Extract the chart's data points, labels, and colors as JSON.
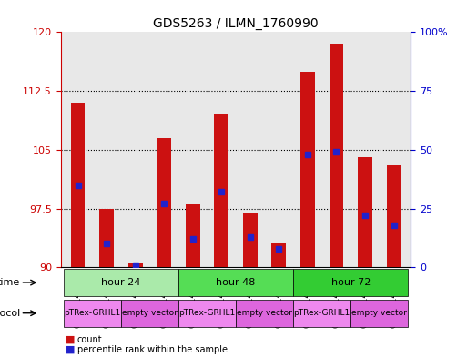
{
  "title": "GDS5263 / ILMN_1760990",
  "samples": [
    "GSM1149037",
    "GSM1149039",
    "GSM1149036",
    "GSM1149038",
    "GSM1149041",
    "GSM1149043",
    "GSM1149040",
    "GSM1149042",
    "GSM1149045",
    "GSM1149047",
    "GSM1149044",
    "GSM1149046"
  ],
  "red_values": [
    111.0,
    97.5,
    90.5,
    106.5,
    98.0,
    109.5,
    97.0,
    93.0,
    115.0,
    118.5,
    104.0,
    103.0
  ],
  "blue_percentile": [
    35,
    10,
    1,
    27,
    12,
    32,
    13,
    8,
    48,
    49,
    22,
    18
  ],
  "ylim_left": [
    90,
    120
  ],
  "ylim_right": [
    0,
    100
  ],
  "yticks_left": [
    90,
    97.5,
    105,
    112.5,
    120
  ],
  "yticks_right": [
    0,
    25,
    50,
    75,
    100
  ],
  "ytick_labels_right": [
    "0",
    "25",
    "50",
    "75",
    "100%"
  ],
  "grid_dotted_values": [
    97.5,
    105,
    112.5
  ],
  "bar_color": "#cc1111",
  "blue_color": "#2222cc",
  "bar_bottom": 90,
  "time_groups": [
    {
      "label": "hour 24",
      "start": 0,
      "end": 4,
      "color": "#aaeaaa"
    },
    {
      "label": "hour 48",
      "start": 4,
      "end": 8,
      "color": "#55dd55"
    },
    {
      "label": "hour 72",
      "start": 8,
      "end": 12,
      "color": "#33cc33"
    }
  ],
  "protocol_groups": [
    {
      "label": "pTRex-GRHL1",
      "start": 0,
      "end": 2,
      "color": "#ee88ee"
    },
    {
      "label": "empty vector",
      "start": 2,
      "end": 4,
      "color": "#dd66dd"
    },
    {
      "label": "pTRex-GRHL1",
      "start": 4,
      "end": 6,
      "color": "#ee88ee"
    },
    {
      "label": "empty vector",
      "start": 6,
      "end": 8,
      "color": "#dd66dd"
    },
    {
      "label": "pTRex-GRHL1",
      "start": 8,
      "end": 10,
      "color": "#ee88ee"
    },
    {
      "label": "empty vector",
      "start": 10,
      "end": 12,
      "color": "#dd66dd"
    }
  ],
  "legend_items": [
    {
      "color": "#cc1111",
      "label": "count"
    },
    {
      "color": "#2222cc",
      "label": "percentile rank within the sample"
    }
  ],
  "bar_width": 0.5,
  "background_color": "#ffffff"
}
